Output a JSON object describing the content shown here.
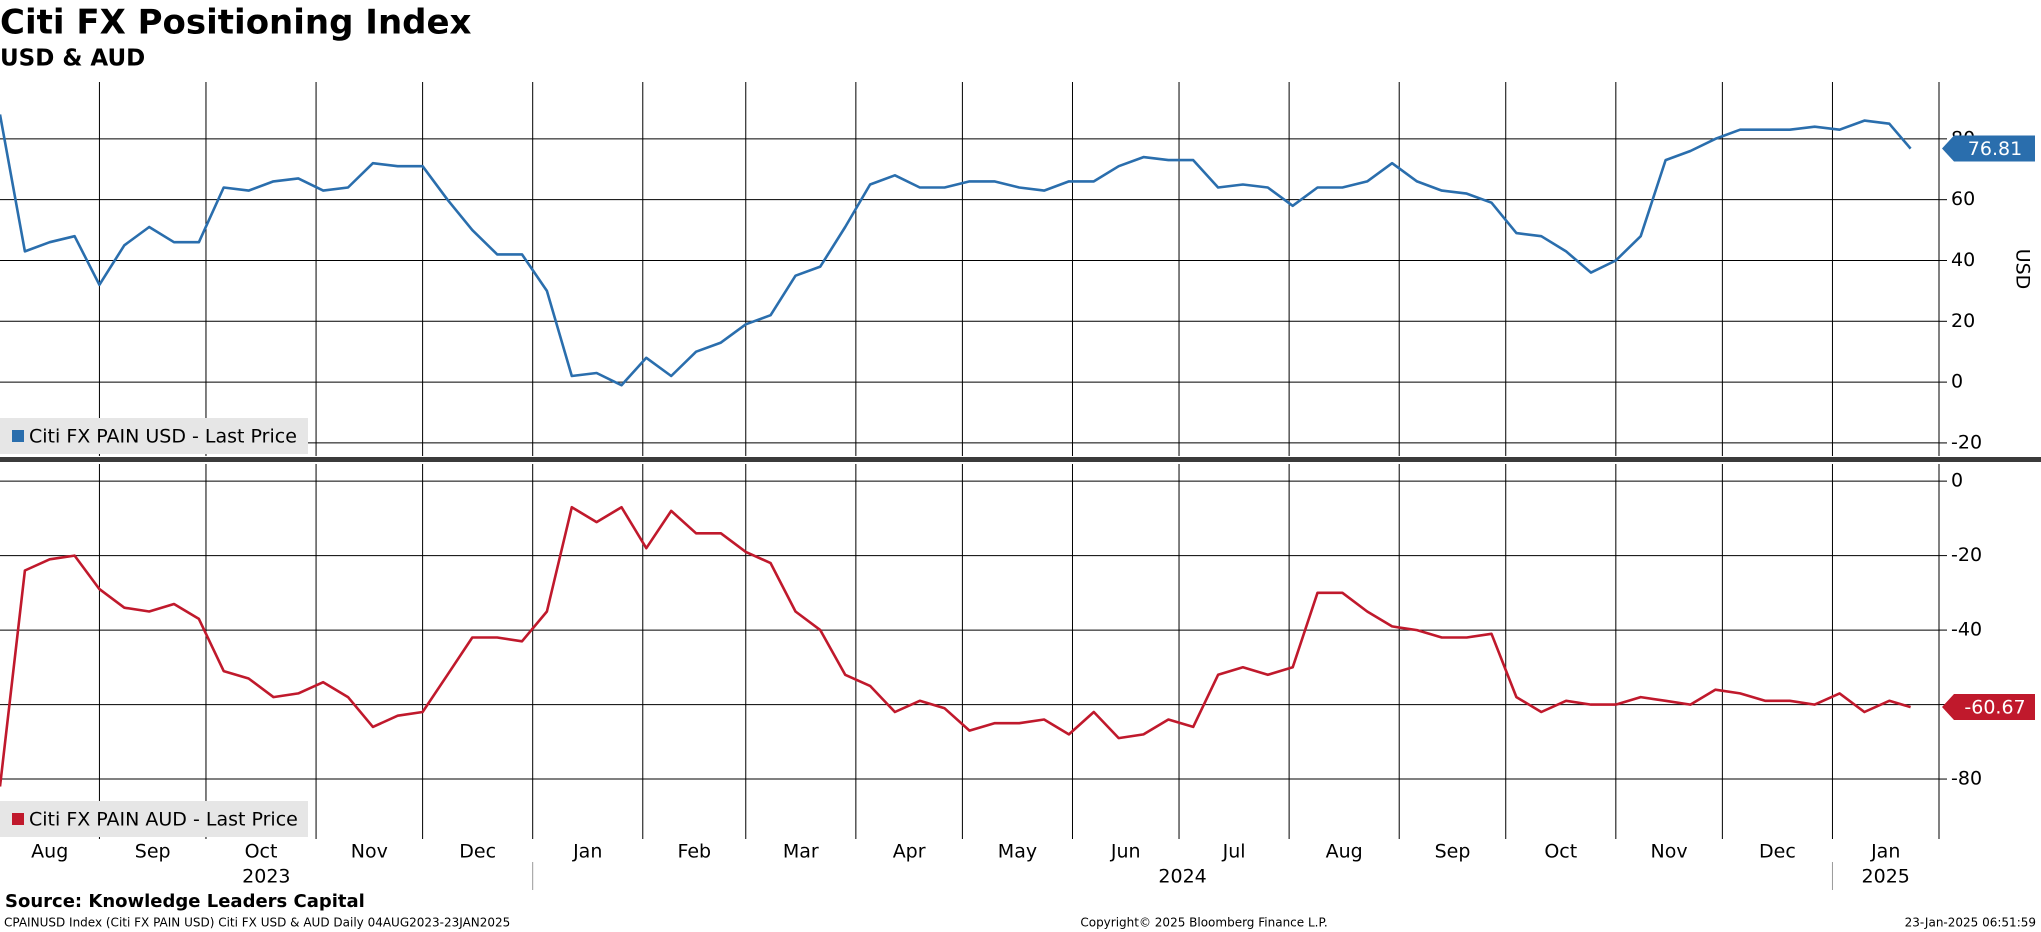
{
  "chart_data": [
    {
      "type": "line",
      "title": "Citi FX Positioning Index",
      "subtitle": "USD & AUD",
      "y_label": "USD",
      "grid": true,
      "legend": "lower left",
      "x": [
        "2023-08-04",
        "2023-08-11",
        "2023-08-18",
        "2023-08-25",
        "2023-09-01",
        "2023-09-08",
        "2023-09-15",
        "2023-09-22",
        "2023-09-29",
        "2023-10-06",
        "2023-10-13",
        "2023-10-20",
        "2023-10-27",
        "2023-11-03",
        "2023-11-10",
        "2023-11-17",
        "2023-11-24",
        "2023-12-01",
        "2023-12-08",
        "2023-12-15",
        "2023-12-22",
        "2023-12-29",
        "2024-01-05",
        "2024-01-12",
        "2024-01-19",
        "2024-01-26",
        "2024-02-02",
        "2024-02-09",
        "2024-02-16",
        "2024-02-23",
        "2024-03-01",
        "2024-03-08",
        "2024-03-15",
        "2024-03-22",
        "2024-03-29",
        "2024-04-05",
        "2024-04-12",
        "2024-04-19",
        "2024-04-26",
        "2024-05-03",
        "2024-05-10",
        "2024-05-17",
        "2024-05-24",
        "2024-05-31",
        "2024-06-07",
        "2024-06-14",
        "2024-06-21",
        "2024-06-28",
        "2024-07-05",
        "2024-07-12",
        "2024-07-19",
        "2024-07-26",
        "2024-08-02",
        "2024-08-09",
        "2024-08-16",
        "2024-08-23",
        "2024-08-30",
        "2024-09-06",
        "2024-09-13",
        "2024-09-20",
        "2024-09-27",
        "2024-10-04",
        "2024-10-11",
        "2024-10-18",
        "2024-10-25",
        "2024-11-01",
        "2024-11-08",
        "2024-11-15",
        "2024-11-22",
        "2024-11-29",
        "2024-12-06",
        "2024-12-13",
        "2024-12-20",
        "2024-12-27",
        "2025-01-03",
        "2025-01-10",
        "2025-01-17",
        "2025-01-23"
      ],
      "xlim": [
        "2023-08-04",
        "2025-01-31"
      ],
      "ylim": [
        -24.3,
        98.7
      ],
      "yticks": [
        -20,
        0,
        20,
        40,
        60,
        80
      ],
      "series": [
        {
          "name": "Citi FX PAIN USD - Last Price",
          "color": "#2a6ead",
          "values": [
            88,
            43,
            46,
            48,
            32,
            45,
            51,
            46,
            46,
            64,
            63,
            66,
            67,
            63,
            64,
            72,
            71,
            71,
            60,
            50,
            42,
            42,
            30,
            2,
            3,
            -1,
            8,
            2,
            10,
            13,
            19,
            22,
            35,
            38,
            51,
            65,
            68,
            64,
            64,
            66,
            66,
            64,
            63,
            66,
            66,
            71,
            74,
            73,
            73,
            64,
            65,
            64,
            58,
            64,
            64,
            66,
            72,
            66,
            63,
            62,
            59,
            49,
            48,
            43,
            36,
            40,
            48,
            73,
            76,
            80,
            83,
            83,
            83,
            84,
            83,
            86,
            85,
            76.81
          ]
        }
      ]
    },
    {
      "type": "line",
      "grid": true,
      "legend": "lower left",
      "x": [
        "2023-08-04",
        "2023-08-11",
        "2023-08-18",
        "2023-08-25",
        "2023-09-01",
        "2023-09-08",
        "2023-09-15",
        "2023-09-22",
        "2023-09-29",
        "2023-10-06",
        "2023-10-13",
        "2023-10-20",
        "2023-10-27",
        "2023-11-03",
        "2023-11-10",
        "2023-11-17",
        "2023-11-24",
        "2023-12-01",
        "2023-12-08",
        "2023-12-15",
        "2023-12-22",
        "2023-12-29",
        "2024-01-05",
        "2024-01-12",
        "2024-01-19",
        "2024-01-26",
        "2024-02-02",
        "2024-02-09",
        "2024-02-16",
        "2024-02-23",
        "2024-03-01",
        "2024-03-08",
        "2024-03-15",
        "2024-03-22",
        "2024-03-29",
        "2024-04-05",
        "2024-04-12",
        "2024-04-19",
        "2024-04-26",
        "2024-05-03",
        "2024-05-10",
        "2024-05-17",
        "2024-05-24",
        "2024-05-31",
        "2024-06-07",
        "2024-06-14",
        "2024-06-21",
        "2024-06-28",
        "2024-07-05",
        "2024-07-12",
        "2024-07-19",
        "2024-07-26",
        "2024-08-02",
        "2024-08-09",
        "2024-08-16",
        "2024-08-23",
        "2024-08-30",
        "2024-09-06",
        "2024-09-13",
        "2024-09-20",
        "2024-09-27",
        "2024-10-04",
        "2024-10-11",
        "2024-10-18",
        "2024-10-25",
        "2024-11-01",
        "2024-11-08",
        "2024-11-15",
        "2024-11-22",
        "2024-11-29",
        "2024-12-06",
        "2024-12-13",
        "2024-12-20",
        "2024-12-27",
        "2025-01-03",
        "2025-01-10",
        "2025-01-17",
        "2025-01-23"
      ],
      "xlim": [
        "2023-08-04",
        "2025-01-31"
      ],
      "xticks": [
        {
          "value": "2023-08-01",
          "label": "Aug"
        },
        {
          "value": "2023-09-01",
          "label": "Sep"
        },
        {
          "value": "2023-10-01",
          "label": "Oct"
        },
        {
          "value": "2023-11-01",
          "label": "Nov"
        },
        {
          "value": "2023-12-01",
          "label": "Dec"
        },
        {
          "value": "2024-01-01",
          "label": "Jan"
        },
        {
          "value": "2024-02-01",
          "label": "Feb"
        },
        {
          "value": "2024-03-01",
          "label": "Mar"
        },
        {
          "value": "2024-04-01",
          "label": "Apr"
        },
        {
          "value": "2024-05-01",
          "label": "May"
        },
        {
          "value": "2024-06-01",
          "label": "Jun"
        },
        {
          "value": "2024-07-01",
          "label": "Jul"
        },
        {
          "value": "2024-08-01",
          "label": "Aug"
        },
        {
          "value": "2024-09-01",
          "label": "Sep"
        },
        {
          "value": "2024-10-01",
          "label": "Oct"
        },
        {
          "value": "2024-11-01",
          "label": "Nov"
        },
        {
          "value": "2024-12-01",
          "label": "Dec"
        },
        {
          "value": "2025-01-01",
          "label": "Jan"
        }
      ],
      "year_ticks": [
        {
          "value": "2023-01-01",
          "label": "2023"
        },
        {
          "value": "2024-01-01",
          "label": "2024"
        },
        {
          "value": "2025-01-01",
          "label": "2025"
        }
      ],
      "ylim": [
        -96.1,
        4.6
      ],
      "yticks": [
        -80,
        -60,
        -40,
        -20,
        0
      ],
      "series": [
        {
          "name": "Citi FX PAIN AUD - Last Price",
          "color": "#c0192c",
          "values": [
            -82,
            -24,
            -21,
            -20,
            -29,
            -34,
            -35,
            -33,
            -37,
            -51,
            -53,
            -58,
            -57,
            -54,
            -58,
            -66,
            -63,
            -62,
            -52,
            -42,
            -42,
            -43,
            -35,
            -7,
            -11,
            -7,
            -18,
            -8,
            -14,
            -14,
            -19,
            -22,
            -35,
            -40,
            -52,
            -55,
            -62,
            -59,
            -61,
            -67,
            -65,
            -65,
            -64,
            -68,
            -62,
            -69,
            -68,
            -64,
            -66,
            -52,
            -50,
            -52,
            -50,
            -30,
            -30,
            -35,
            -39,
            -40,
            -42,
            -42,
            -41,
            -58,
            -62,
            -59,
            -60,
            -60,
            -58,
            -59,
            -60,
            -56,
            -57,
            -59,
            -59,
            -60,
            -57,
            -62,
            -59,
            -60.67
          ]
        }
      ]
    }
  ],
  "footer": {
    "source": "Source: Knowledge Leaders Capital",
    "info": "CPAINUSD Index (Citi FX PAIN USD) Citi FX USD & AUD  Daily 04AUG2023-23JAN2025",
    "copyright": "Copyright© 2025 Bloomberg Finance L.P.",
    "timestamp": "23-Jan-2025 06:51:59"
  }
}
